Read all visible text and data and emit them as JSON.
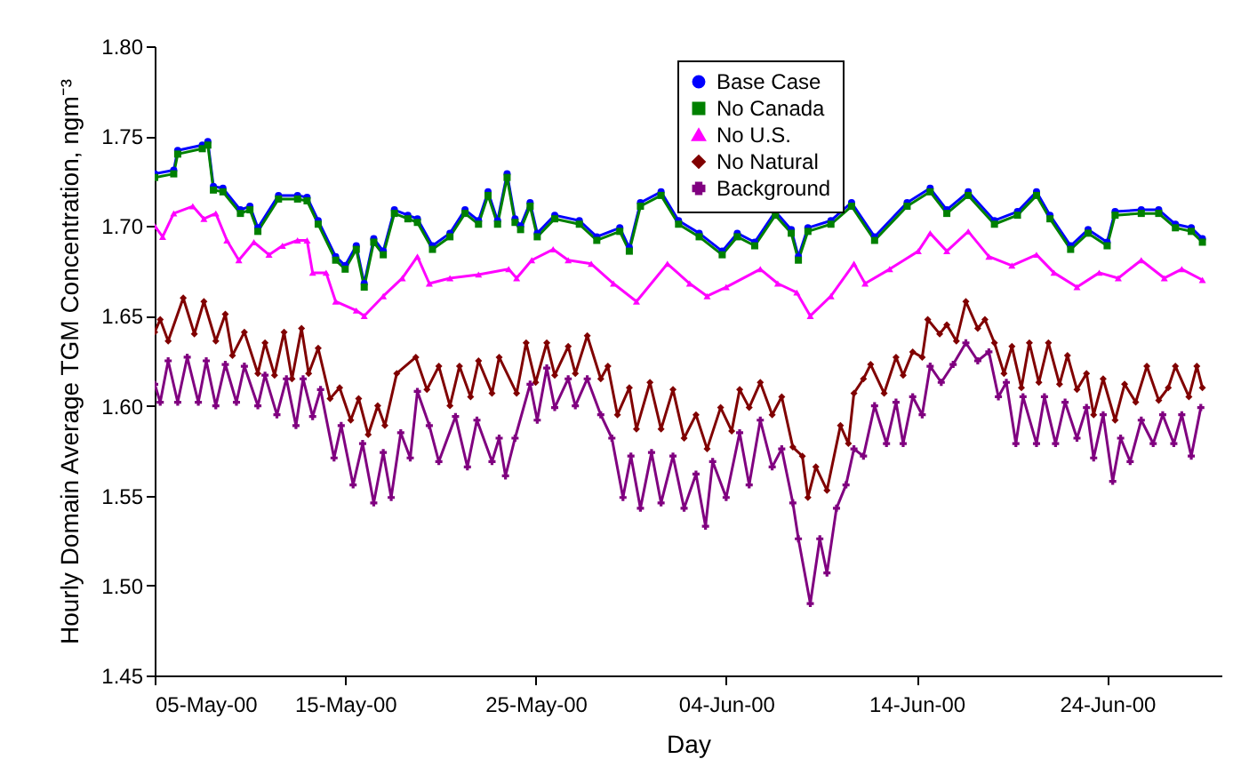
{
  "chart_data": {
    "type": "line",
    "xlabel": "Day",
    "ylabel": "Hourly Domain Average TGM Concentration, ngm⁻³",
    "x": [
      "2000-05-05T00:00",
      "2000-05-06T00:00",
      "2000-05-06T05:00",
      "2000-05-07T12:00",
      "2000-05-07T19:00",
      "2000-05-08T02:00",
      "2000-05-08T14:00",
      "2000-05-09T12:00",
      "2000-05-10T00:00",
      "2000-05-10T10:00",
      "2000-05-11T12:00",
      "2000-05-12T12:00",
      "2000-05-13T00:00",
      "2000-05-13T14:00",
      "2000-05-14T12:00",
      "2000-05-15T00:00",
      "2000-05-15T14:00",
      "2000-05-16T00:00",
      "2000-05-16T12:00",
      "2000-05-17T00:00",
      "2000-05-17T14:00",
      "2000-05-18T07:00",
      "2000-05-18T19:00",
      "2000-05-19T14:00",
      "2000-05-20T12:00",
      "2000-05-21T07:00",
      "2000-05-22T00:00",
      "2000-05-22T12:00",
      "2000-05-23T00:00",
      "2000-05-23T12:00",
      "2000-05-23T22:00",
      "2000-05-24T05:00",
      "2000-05-24T17:00",
      "2000-05-25T02:00",
      "2000-05-26T00:00",
      "2000-05-27T07:00",
      "2000-05-28T05:00",
      "2000-05-29T10:00",
      "2000-05-29T22:00",
      "2000-05-30T12:00",
      "2000-05-31T14:00",
      "2000-06-01T12:00",
      "2000-06-02T14:00",
      "2000-06-03T19:00",
      "2000-06-04T14:00",
      "2000-06-05T12:00",
      "2000-06-06T14:00",
      "2000-06-07T10:00",
      "2000-06-07T19:00",
      "2000-06-08T07:00",
      "2000-06-09T12:00",
      "2000-06-10T14:00",
      "2000-06-11T19:00",
      "2000-06-13T12:00",
      "2000-06-14T17:00",
      "2000-06-15T14:00",
      "2000-06-16T17:00",
      "2000-06-18T02:00",
      "2000-06-19T07:00",
      "2000-06-20T07:00",
      "2000-06-21T00:00",
      "2000-06-22T02:00",
      "2000-06-23T00:00",
      "2000-06-24T00:00",
      "2000-06-24T10:00",
      "2000-06-25T19:00",
      "2000-06-26T17:00",
      "2000-06-27T14:00",
      "2000-06-28T10:00",
      "2000-06-29T00:00"
    ],
    "series": [
      {
        "name": "Base Case",
        "color": "#0000ff",
        "marker": "circle",
        "values": [
          1.729,
          1.731,
          1.742,
          1.745,
          1.747,
          1.722,
          1.721,
          1.709,
          1.711,
          1.699,
          1.717,
          1.717,
          1.716,
          1.703,
          1.683,
          1.678,
          1.689,
          1.668,
          1.693,
          1.686,
          1.709,
          1.706,
          1.704,
          1.689,
          1.696,
          1.709,
          1.703,
          1.719,
          1.703,
          1.729,
          1.704,
          1.7,
          1.713,
          1.696,
          1.706,
          1.703,
          1.694,
          1.699,
          1.688,
          1.713,
          1.719,
          1.703,
          1.696,
          1.686,
          1.696,
          1.691,
          1.708,
          1.698,
          1.683,
          1.699,
          1.703,
          1.713,
          1.694,
          1.713,
          1.721,
          1.709,
          1.719,
          1.703,
          1.708,
          1.719,
          1.706,
          1.689,
          1.698,
          1.691,
          1.708,
          1.709,
          1.709,
          1.701,
          1.699,
          1.693
        ]
      },
      {
        "name": "No Canada",
        "color": "#008000",
        "marker": "square",
        "values": [
          1.727,
          1.729,
          1.74,
          1.743,
          1.745,
          1.72,
          1.719,
          1.707,
          1.709,
          1.697,
          1.715,
          1.715,
          1.714,
          1.701,
          1.681,
          1.676,
          1.687,
          1.666,
          1.691,
          1.684,
          1.707,
          1.704,
          1.702,
          1.687,
          1.694,
          1.707,
          1.701,
          1.717,
          1.701,
          1.727,
          1.702,
          1.698,
          1.711,
          1.694,
          1.704,
          1.701,
          1.692,
          1.697,
          1.686,
          1.711,
          1.717,
          1.701,
          1.694,
          1.684,
          1.694,
          1.689,
          1.706,
          1.696,
          1.681,
          1.697,
          1.701,
          1.711,
          1.692,
          1.711,
          1.719,
          1.707,
          1.717,
          1.701,
          1.706,
          1.717,
          1.704,
          1.687,
          1.696,
          1.689,
          1.706,
          1.707,
          1.707,
          1.699,
          1.697,
          1.691
        ]
      },
      {
        "name": "No U.S.",
        "color": "#ff00ff",
        "marker": "triangle",
        "x": [
          "2000-05-05T00:00",
          "2000-05-05T10:00",
          "2000-05-06T00:00",
          "2000-05-07T00:00",
          "2000-05-07T14:00",
          "2000-05-08T05:00",
          "2000-05-08T19:00",
          "2000-05-09T10:00",
          "2000-05-10T05:00",
          "2000-05-11T00:00",
          "2000-05-11T17:00",
          "2000-05-12T12:00",
          "2000-05-13T00:00",
          "2000-05-13T07:00",
          "2000-05-14T00:00",
          "2000-05-14T12:00",
          "2000-05-15T14:00",
          "2000-05-16T00:00",
          "2000-05-17T00:00",
          "2000-05-18T00:00",
          "2000-05-18T19:00",
          "2000-05-19T10:00",
          "2000-05-20T12:00",
          "2000-05-22T00:00",
          "2000-05-23T14:00",
          "2000-05-24T00:00",
          "2000-05-24T19:00",
          "2000-05-25T22:00",
          "2000-05-26T17:00",
          "2000-05-27T22:00",
          "2000-05-29T02:00",
          "2000-05-30T07:00",
          "2000-05-31T22:00",
          "2000-06-02T02:00",
          "2000-06-03T00:00",
          "2000-06-04T00:00",
          "2000-06-05T19:00",
          "2000-06-06T17:00",
          "2000-06-07T17:00",
          "2000-06-08T10:00",
          "2000-06-09T12:00",
          "2000-06-10T17:00",
          "2000-06-11T07:00",
          "2000-06-12T14:00",
          "2000-06-14T02:00",
          "2000-06-14T17:00",
          "2000-06-15T14:00",
          "2000-06-16T17:00",
          "2000-06-17T19:00",
          "2000-06-19T00:00",
          "2000-06-20T07:00",
          "2000-06-21T05:00",
          "2000-06-22T10:00",
          "2000-06-23T14:00",
          "2000-06-24T14:00",
          "2000-06-25T19:00",
          "2000-06-27T00:00",
          "2000-06-27T22:00",
          "2000-06-29T00:00"
        ],
        "values": [
          1.7,
          1.694,
          1.707,
          1.711,
          1.704,
          1.707,
          1.692,
          1.681,
          1.691,
          1.684,
          1.689,
          1.692,
          1.692,
          1.674,
          1.674,
          1.658,
          1.653,
          1.65,
          1.661,
          1.671,
          1.683,
          1.668,
          1.671,
          1.673,
          1.676,
          1.671,
          1.681,
          1.687,
          1.681,
          1.679,
          1.668,
          1.658,
          1.679,
          1.668,
          1.661,
          1.666,
          1.676,
          1.668,
          1.663,
          1.65,
          1.661,
          1.679,
          1.668,
          1.676,
          1.686,
          1.696,
          1.686,
          1.697,
          1.683,
          1.678,
          1.684,
          1.674,
          1.666,
          1.674,
          1.671,
          1.681,
          1.671,
          1.676,
          1.67
        ]
      },
      {
        "name": "No Natural",
        "color": "#800000",
        "marker": "diamond",
        "x": [
          "2000-05-05T00:00",
          "2000-05-05T07:00",
          "2000-05-05T17:00",
          "2000-05-06T12:00",
          "2000-05-07T02:00",
          "2000-05-07T14:00",
          "2000-05-08T05:00",
          "2000-05-08T17:00",
          "2000-05-09T02:00",
          "2000-05-09T17:00",
          "2000-05-10T10:00",
          "2000-05-10T19:00",
          "2000-05-11T07:00",
          "2000-05-11T19:00",
          "2000-05-12T05:00",
          "2000-05-12T17:00",
          "2000-05-13T02:00",
          "2000-05-13T14:00",
          "2000-05-14T05:00",
          "2000-05-14T17:00",
          "2000-05-15T07:00",
          "2000-05-15T17:00",
          "2000-05-16T05:00",
          "2000-05-16T17:00",
          "2000-05-17T02:00",
          "2000-05-17T17:00",
          "2000-05-18T17:00",
          "2000-05-19T07:00",
          "2000-05-19T22:00",
          "2000-05-20T12:00",
          "2000-05-21T00:00",
          "2000-05-21T14:00",
          "2000-05-22T00:00",
          "2000-05-22T17:00",
          "2000-05-23T02:00",
          "2000-05-24T00:00",
          "2000-05-24T12:00",
          "2000-05-25T00:00",
          "2000-05-25T14:00",
          "2000-05-26T00:00",
          "2000-05-26T17:00",
          "2000-05-27T02:00",
          "2000-05-27T17:00",
          "2000-05-28T10:00",
          "2000-05-28T19:00",
          "2000-05-29T07:00",
          "2000-05-29T22:00",
          "2000-05-30T07:00",
          "2000-05-31T00:00",
          "2000-05-31T14:00",
          "2000-06-01T05:00",
          "2000-06-01T19:00",
          "2000-06-02T10:00",
          "2000-06-03T00:00",
          "2000-06-03T17:00",
          "2000-06-04T07:00",
          "2000-06-04T17:00",
          "2000-06-05T05:00",
          "2000-06-05T19:00",
          "2000-06-06T10:00",
          "2000-06-06T22:00",
          "2000-06-07T12:00",
          "2000-06-08T00:00",
          "2000-06-08T07:00",
          "2000-06-08T17:00",
          "2000-06-09T07:00",
          "2000-06-10T00:00",
          "2000-06-10T10:00",
          "2000-06-10T17:00",
          "2000-06-11T05:00",
          "2000-06-11T14:00",
          "2000-06-12T07:00",
          "2000-06-12T22:00",
          "2000-06-13T07:00",
          "2000-06-13T19:00",
          "2000-06-14T07:00",
          "2000-06-14T14:00",
          "2000-06-15T05:00",
          "2000-06-15T14:00",
          "2000-06-16T02:00",
          "2000-06-16T14:00",
          "2000-06-17T05:00",
          "2000-06-17T14:00",
          "2000-06-18T02:00",
          "2000-06-18T14:00",
          "2000-06-19T00:00",
          "2000-06-19T12:00",
          "2000-06-19T22:00",
          "2000-06-20T10:00",
          "2000-06-20T22:00",
          "2000-06-21T12:00",
          "2000-06-21T22:00",
          "2000-06-22T10:00",
          "2000-06-22T22:00",
          "2000-06-23T07:00",
          "2000-06-23T19:00",
          "2000-06-24T10:00",
          "2000-06-24T22:00",
          "2000-06-25T12:00",
          "2000-06-26T02:00",
          "2000-06-26T17:00",
          "2000-06-27T05:00",
          "2000-06-27T14:00",
          "2000-06-28T07:00",
          "2000-06-28T17:00",
          "2000-06-29T00:00"
        ],
        "values": [
          1.641,
          1.648,
          1.636,
          1.66,
          1.64,
          1.658,
          1.636,
          1.651,
          1.628,
          1.641,
          1.618,
          1.635,
          1.617,
          1.641,
          1.615,
          1.643,
          1.618,
          1.632,
          1.604,
          1.61,
          1.592,
          1.604,
          1.584,
          1.6,
          1.589,
          1.618,
          1.627,
          1.609,
          1.622,
          1.6,
          1.622,
          1.605,
          1.625,
          1.607,
          1.627,
          1.607,
          1.635,
          1.613,
          1.635,
          1.617,
          1.633,
          1.618,
          1.639,
          1.615,
          1.622,
          1.595,
          1.61,
          1.587,
          1.613,
          1.587,
          1.609,
          1.582,
          1.595,
          1.576,
          1.599,
          1.586,
          1.609,
          1.599,
          1.613,
          1.595,
          1.605,
          1.577,
          1.572,
          1.549,
          1.566,
          1.553,
          1.589,
          1.579,
          1.607,
          1.615,
          1.623,
          1.607,
          1.627,
          1.617,
          1.63,
          1.627,
          1.648,
          1.64,
          1.645,
          1.636,
          1.658,
          1.643,
          1.648,
          1.635,
          1.618,
          1.633,
          1.61,
          1.635,
          1.613,
          1.635,
          1.612,
          1.628,
          1.609,
          1.618,
          1.595,
          1.615,
          1.592,
          1.612,
          1.602,
          1.622,
          1.603,
          1.61,
          1.622,
          1.605,
          1.622,
          1.61
        ]
      },
      {
        "name": "Background",
        "color": "#800080",
        "marker": "cross",
        "x": [
          "2000-05-05T00:00",
          "2000-05-05T07:00",
          "2000-05-05T17:00",
          "2000-05-06T05:00",
          "2000-05-06T17:00",
          "2000-05-07T07:00",
          "2000-05-07T17:00",
          "2000-05-08T05:00",
          "2000-05-08T17:00",
          "2000-05-09T07:00",
          "2000-05-09T17:00",
          "2000-05-10T10:00",
          "2000-05-10T19:00",
          "2000-05-11T10:00",
          "2000-05-11T22:00",
          "2000-05-12T10:00",
          "2000-05-12T19:00",
          "2000-05-13T07:00",
          "2000-05-13T17:00",
          "2000-05-14T10:00",
          "2000-05-14T19:00",
          "2000-05-15T10:00",
          "2000-05-15T22:00",
          "2000-05-16T12:00",
          "2000-05-17T00:00",
          "2000-05-17T10:00",
          "2000-05-17T22:00",
          "2000-05-18T10:00",
          "2000-05-18T19:00",
          "2000-05-19T10:00",
          "2000-05-19T22:00",
          "2000-05-20T19:00",
          "2000-05-21T10:00",
          "2000-05-21T22:00",
          "2000-05-22T17:00",
          "2000-05-23T02:00",
          "2000-05-23T10:00",
          "2000-05-23T22:00",
          "2000-05-24T17:00",
          "2000-05-25T02:00",
          "2000-05-25T14:00",
          "2000-05-26T00:00",
          "2000-05-26T17:00",
          "2000-05-27T02:00",
          "2000-05-27T17:00",
          "2000-05-28T10:00",
          "2000-05-29T00:00",
          "2000-05-29T14:00",
          "2000-05-30T00:00",
          "2000-05-30T12:00",
          "2000-05-31T02:00",
          "2000-05-31T14:00",
          "2000-06-01T05:00",
          "2000-06-01T19:00",
          "2000-06-02T10:00",
          "2000-06-02T22:00",
          "2000-06-03T07:00",
          "2000-06-04T00:00",
          "2000-06-04T17:00",
          "2000-06-05T05:00",
          "2000-06-05T19:00",
          "2000-06-06T10:00",
          "2000-06-06T22:00",
          "2000-06-07T12:00",
          "2000-06-07T19:00",
          "2000-06-08T10:00",
          "2000-06-08T22:00",
          "2000-06-09T07:00",
          "2000-06-09T19:00",
          "2000-06-10T07:00",
          "2000-06-10T17:00",
          "2000-06-11T05:00",
          "2000-06-11T19:00",
          "2000-06-12T10:00",
          "2000-06-12T22:00",
          "2000-06-13T07:00",
          "2000-06-13T19:00",
          "2000-06-14T07:00",
          "2000-06-14T17:00",
          "2000-06-15T07:00",
          "2000-06-15T22:00",
          "2000-06-16T14:00",
          "2000-06-17T05:00",
          "2000-06-17T19:00",
          "2000-06-18T07:00",
          "2000-06-18T17:00",
          "2000-06-19T05:00",
          "2000-06-19T14:00",
          "2000-06-20T07:00",
          "2000-06-20T17:00",
          "2000-06-21T07:00",
          "2000-06-21T19:00",
          "2000-06-22T10:00",
          "2000-06-22T22:00",
          "2000-06-23T07:00",
          "2000-06-23T19:00",
          "2000-06-24T07:00",
          "2000-06-24T17:00",
          "2000-06-25T05:00",
          "2000-06-25T19:00",
          "2000-06-26T10:00",
          "2000-06-26T22:00",
          "2000-06-27T12:00",
          "2000-06-27T22:00",
          "2000-06-28T10:00",
          "2000-06-28T22:00"
        ],
        "values": [
          1.612,
          1.602,
          1.625,
          1.602,
          1.627,
          1.602,
          1.625,
          1.6,
          1.623,
          1.602,
          1.622,
          1.6,
          1.617,
          1.595,
          1.615,
          1.589,
          1.615,
          1.594,
          1.609,
          1.571,
          1.589,
          1.556,
          1.579,
          1.546,
          1.574,
          1.549,
          1.585,
          1.571,
          1.608,
          1.589,
          1.569,
          1.594,
          1.566,
          1.592,
          1.569,
          1.582,
          1.561,
          1.582,
          1.612,
          1.592,
          1.621,
          1.599,
          1.615,
          1.6,
          1.615,
          1.595,
          1.582,
          1.549,
          1.572,
          1.543,
          1.574,
          1.546,
          1.572,
          1.543,
          1.562,
          1.533,
          1.569,
          1.549,
          1.585,
          1.556,
          1.592,
          1.566,
          1.576,
          1.546,
          1.526,
          1.49,
          1.526,
          1.507,
          1.543,
          1.556,
          1.576,
          1.572,
          1.6,
          1.579,
          1.602,
          1.579,
          1.605,
          1.595,
          1.622,
          1.613,
          1.623,
          1.635,
          1.625,
          1.63,
          1.605,
          1.613,
          1.579,
          1.605,
          1.579,
          1.605,
          1.579,
          1.602,
          1.582,
          1.599,
          1.571,
          1.595,
          1.558,
          1.582,
          1.569,
          1.592,
          1.579,
          1.595,
          1.579,
          1.595,
          1.572,
          1.599
        ]
      }
    ],
    "xlim": [
      "2000-05-05",
      "2000-06-30"
    ],
    "xticks": [
      {
        "value": "2000-05-05",
        "label": "05-May-00"
      },
      {
        "value": "2000-05-15",
        "label": "15-May-00"
      },
      {
        "value": "2000-05-25",
        "label": "25-May-00"
      },
      {
        "value": "2000-06-04",
        "label": "04-Jun-00"
      },
      {
        "value": "2000-06-14",
        "label": "14-Jun-00"
      },
      {
        "value": "2000-06-24",
        "label": "24-Jun-00"
      }
    ],
    "ylim": [
      1.45,
      1.8
    ],
    "yticks": [
      {
        "value": 1.45,
        "label": "1.45"
      },
      {
        "value": 1.5,
        "label": "1.50"
      },
      {
        "value": 1.55,
        "label": "1.55"
      },
      {
        "value": 1.6,
        "label": "1.60"
      },
      {
        "value": 1.65,
        "label": "1.65"
      },
      {
        "value": 1.7,
        "label": "1.70"
      },
      {
        "value": 1.75,
        "label": "1.75"
      },
      {
        "value": 1.8,
        "label": "1.80"
      }
    ],
    "legend": "top",
    "marker": "circle",
    "line_style": "solid"
  }
}
